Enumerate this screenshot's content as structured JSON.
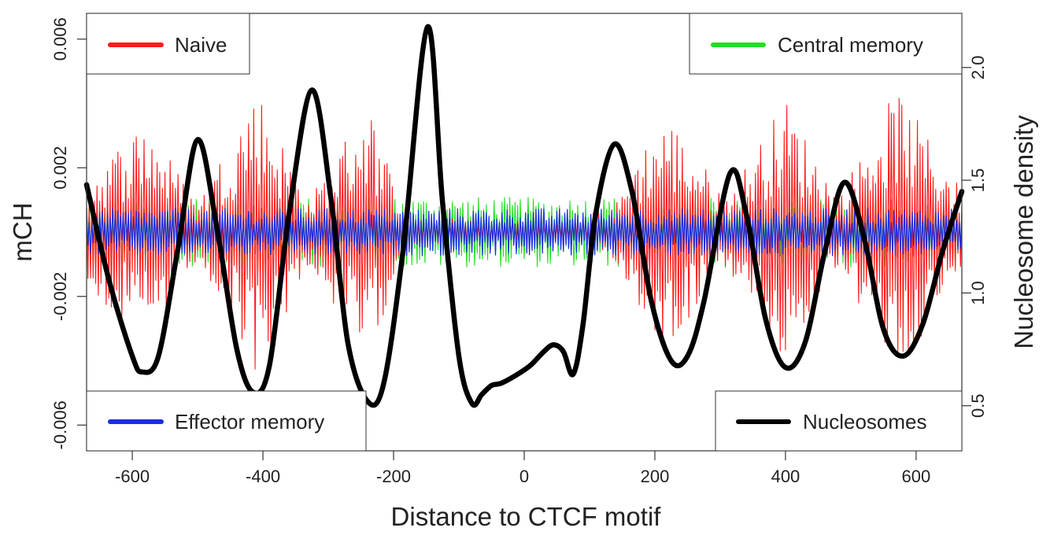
{
  "chart_data": {
    "type": "line",
    "xlabel": "Distance to CTCF motif",
    "ylabel": "mCH",
    "y2label": "Nucleosome density",
    "xlim": [
      -670,
      670
    ],
    "ylim": [
      -0.0068,
      0.0068
    ],
    "y2lim": [
      0.3,
      2.24
    ],
    "x_ticks": [
      -600,
      -400,
      -200,
      0,
      200,
      400,
      600
    ],
    "y_ticks": [
      -0.006,
      -0.002,
      0.002,
      0.006
    ],
    "y_tick_labels": [
      "-0.006",
      "-0.002",
      "0.002",
      "0.006"
    ],
    "y2_ticks": [
      0.5,
      1.0,
      1.5,
      2.0
    ],
    "y2_tick_labels": [
      "0.5",
      "1.0",
      "1.5",
      "2.0"
    ],
    "mch_series": [
      {
        "name": "Naive",
        "color": "#ff1a1a",
        "note": "oscillating mCH profile, envelope amplitude (+/-) per x",
        "envelope_x": [
          -670,
          -580,
          -500,
          -410,
          -330,
          -240,
          -190,
          -150,
          -110,
          -50,
          0,
          50,
          100,
          140,
          180,
          220,
          310,
          400,
          480,
          570,
          670
        ],
        "envelope_amp": [
          0.0015,
          0.0033,
          0.0008,
          0.0042,
          0.0009,
          0.0038,
          0.0008,
          0.0003,
          0.0004,
          0.0003,
          0.0004,
          0.0003,
          0.0005,
          0.0008,
          0.0024,
          0.0033,
          0.001,
          0.0038,
          0.001,
          0.0041,
          0.0012
        ],
        "baseline": 0.0
      },
      {
        "name": "Central memory",
        "color": "#1fe01f",
        "note": "flat noisy mCH band around zero",
        "band": [
          -0.0012,
          0.0012
        ],
        "baseline": 0.0
      },
      {
        "name": "Effector memory",
        "color": "#1a2ee0",
        "note": "flat noisy mCH band around zero",
        "band": [
          -0.0008,
          0.0008
        ],
        "baseline": 0.0
      }
    ],
    "nucleosome_series": {
      "name": "Nucleosomes",
      "color": "#000000",
      "axis": "right",
      "x": [
        -670,
        -635,
        -600,
        -585,
        -560,
        -530,
        -500,
        -470,
        -440,
        -415,
        -390,
        -360,
        -325,
        -295,
        -270,
        -240,
        -215,
        -185,
        -148,
        -125,
        -100,
        -80,
        -65,
        -50,
        -35,
        -10,
        10,
        30,
        45,
        60,
        75,
        90,
        110,
        138,
        165,
        195,
        225,
        250,
        275,
        315,
        340,
        370,
        400,
        430,
        460,
        490,
        520,
        550,
        580,
        610,
        640,
        670
      ],
      "y": [
        1.48,
        1.05,
        0.72,
        0.65,
        0.72,
        1.2,
        1.68,
        1.28,
        0.75,
        0.56,
        0.68,
        1.35,
        1.9,
        1.4,
        0.78,
        0.52,
        0.6,
        1.2,
        2.18,
        1.4,
        0.72,
        0.51,
        0.55,
        0.59,
        0.6,
        0.64,
        0.68,
        0.74,
        0.77,
        0.74,
        0.64,
        0.86,
        1.36,
        1.66,
        1.45,
        0.96,
        0.7,
        0.72,
        0.96,
        1.53,
        1.35,
        0.88,
        0.67,
        0.78,
        1.18,
        1.49,
        1.25,
        0.84,
        0.72,
        0.86,
        1.18,
        1.45
      ]
    },
    "legends": [
      {
        "label": "Naive",
        "color": "#ff1a1a",
        "placement": "top-left"
      },
      {
        "label": "Central memory",
        "color": "#1fe01f",
        "placement": "top-right"
      },
      {
        "label": "Effector memory",
        "color": "#1a2ee0",
        "placement": "bottom-left"
      },
      {
        "label": "Nucleosomes",
        "color": "#000000",
        "placement": "bottom-right"
      }
    ]
  }
}
